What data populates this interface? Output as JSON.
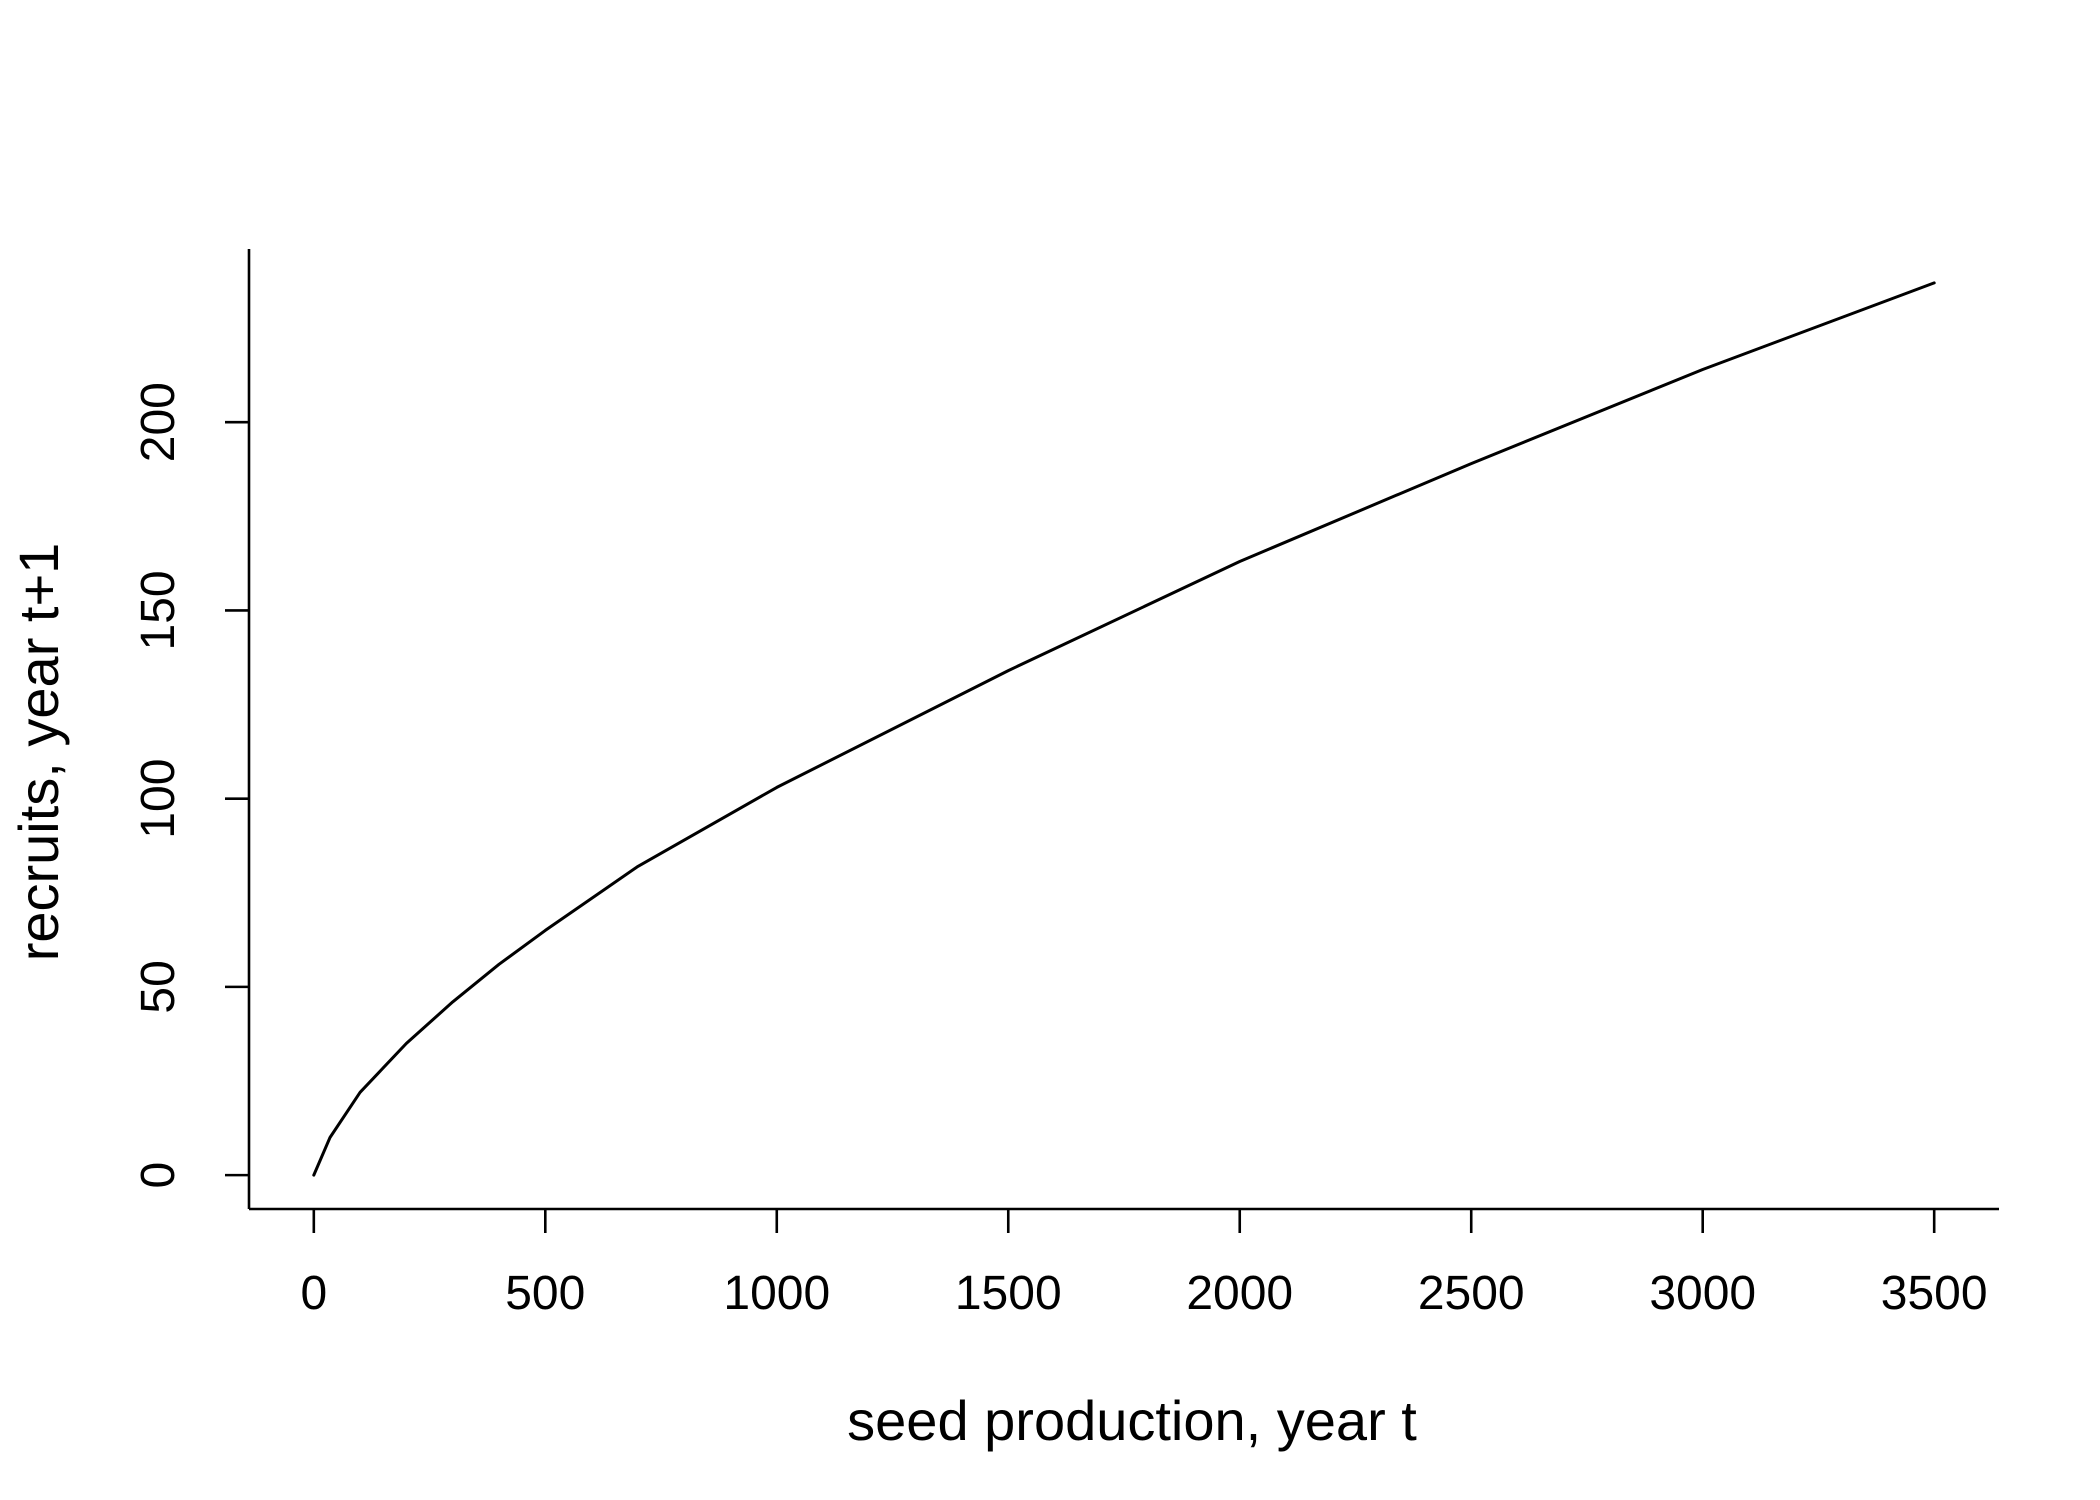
{
  "chart_data": {
    "type": "line",
    "title": "",
    "xlabel": "seed production, year t",
    "ylabel": "recruits, year t+1",
    "xlim": [
      -140,
      3640
    ],
    "ylim": [
      -9,
      246
    ],
    "xticks": [
      0,
      500,
      1000,
      1500,
      2000,
      2500,
      3000,
      3500
    ],
    "xtick_labels": [
      "0",
      "500",
      "1000",
      "1500",
      "2000",
      "2500",
      "3000",
      "3500"
    ],
    "yticks": [
      0,
      50,
      100,
      150,
      200
    ],
    "ytick_labels": [
      "0",
      "50",
      "100",
      "150",
      "200"
    ],
    "grid": false,
    "legend": "none",
    "line_color": "#000000",
    "series": [
      {
        "x": [
          0,
          35,
          100,
          200,
          300,
          400,
          500,
          700,
          1000,
          1500,
          2000,
          2500,
          3000,
          3500
        ],
        "y": [
          0,
          10,
          22,
          35,
          46,
          56,
          65,
          82,
          103,
          134,
          163,
          189,
          214,
          237
        ]
      }
    ]
  }
}
